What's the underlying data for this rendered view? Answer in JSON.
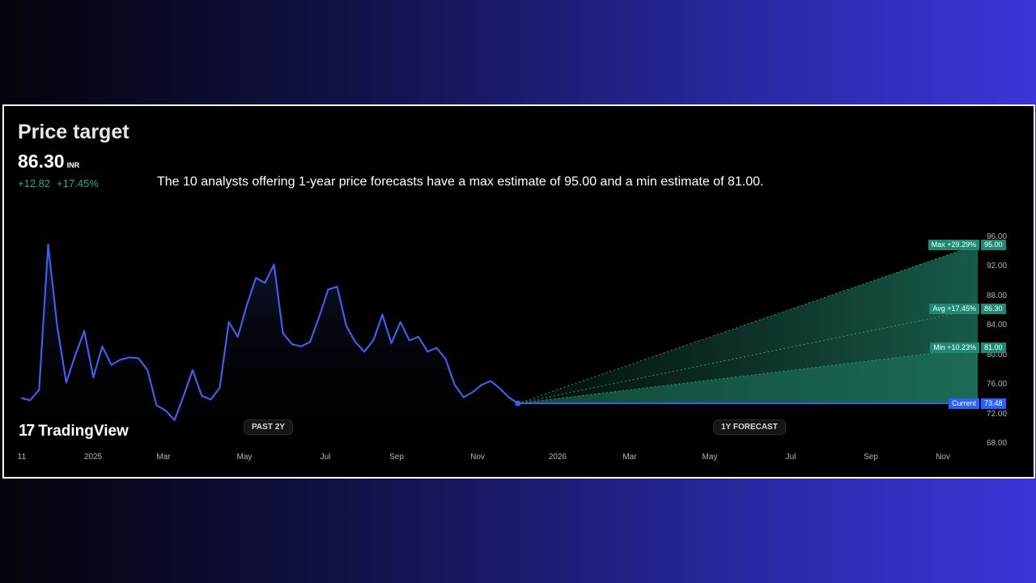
{
  "header": {
    "title": "Price target",
    "price": "86.30",
    "currency": "INR",
    "change_abs": "+12.82",
    "change_pct": "+17.45%",
    "summary": "The 10 analysts offering 1-year price forecasts have a max estimate of 95.00 and a min estimate of 81.00."
  },
  "brand": {
    "logo_mark": "17",
    "logo_text": "TradingView"
  },
  "periods": {
    "past": "PAST 2Y",
    "forecast": "1Y FORECAST"
  },
  "colors": {
    "line": "#3d5fe8",
    "forecast_fill": "#1b5e4f",
    "tag_green": "#1f8a72",
    "tag_blue": "#2962ff",
    "positive": "#22ab94"
  },
  "chart_data": {
    "type": "line",
    "title": "Price target",
    "ylim": [
      68,
      96
    ],
    "y_ticks": [
      "96.00",
      "92.00",
      "88.00",
      "84.00",
      "80.00",
      "76.00",
      "72.00",
      "68.00"
    ],
    "x_ticks": [
      "11",
      "2025",
      "Mar",
      "May",
      "Jul",
      "Sep",
      "Nov",
      "2026",
      "Mar",
      "May",
      "Jul",
      "Sep",
      "Nov"
    ],
    "history": [
      [
        0,
        74.2
      ],
      [
        8,
        73.9
      ],
      [
        16,
        75.3
      ],
      [
        24,
        95.0
      ],
      [
        32,
        84.0
      ],
      [
        40,
        76.3
      ],
      [
        48,
        80.0
      ],
      [
        56,
        83.3
      ],
      [
        64,
        77.0
      ],
      [
        72,
        81.2
      ],
      [
        80,
        78.7
      ],
      [
        88,
        79.4
      ],
      [
        96,
        79.7
      ],
      [
        104,
        79.6
      ],
      [
        112,
        78.0
      ],
      [
        120,
        73.2
      ],
      [
        128,
        72.5
      ],
      [
        136,
        71.2
      ],
      [
        144,
        74.5
      ],
      [
        152,
        78.0
      ],
      [
        160,
        74.5
      ],
      [
        168,
        74.0
      ],
      [
        176,
        75.6
      ],
      [
        184,
        84.5
      ],
      [
        192,
        82.5
      ],
      [
        200,
        86.8
      ],
      [
        208,
        90.5
      ],
      [
        216,
        89.8
      ],
      [
        224,
        92.3
      ],
      [
        232,
        83.0
      ],
      [
        240,
        81.5
      ],
      [
        248,
        81.2
      ],
      [
        256,
        81.8
      ],
      [
        264,
        85.2
      ],
      [
        272,
        88.9
      ],
      [
        280,
        89.3
      ],
      [
        288,
        84.0
      ],
      [
        296,
        81.8
      ],
      [
        304,
        80.5
      ],
      [
        312,
        82.0
      ],
      [
        320,
        85.5
      ],
      [
        328,
        81.6
      ],
      [
        336,
        84.5
      ],
      [
        344,
        82.0
      ],
      [
        352,
        82.5
      ],
      [
        360,
        80.5
      ],
      [
        368,
        81.0
      ],
      [
        376,
        79.5
      ],
      [
        384,
        76.0
      ],
      [
        392,
        74.3
      ],
      [
        400,
        75.0
      ],
      [
        408,
        76.0
      ],
      [
        416,
        76.5
      ],
      [
        424,
        75.5
      ],
      [
        432,
        74.3
      ],
      [
        440,
        73.48
      ]
    ],
    "forecast": {
      "current": {
        "label": "Current",
        "value": "73.48"
      },
      "max": {
        "label": "Max +29.29%",
        "value": "95.00"
      },
      "avg": {
        "label": "Avg +17.45%",
        "value": "86.30"
      },
      "min": {
        "label": "Min +10.23%",
        "value": "81.00"
      }
    }
  }
}
